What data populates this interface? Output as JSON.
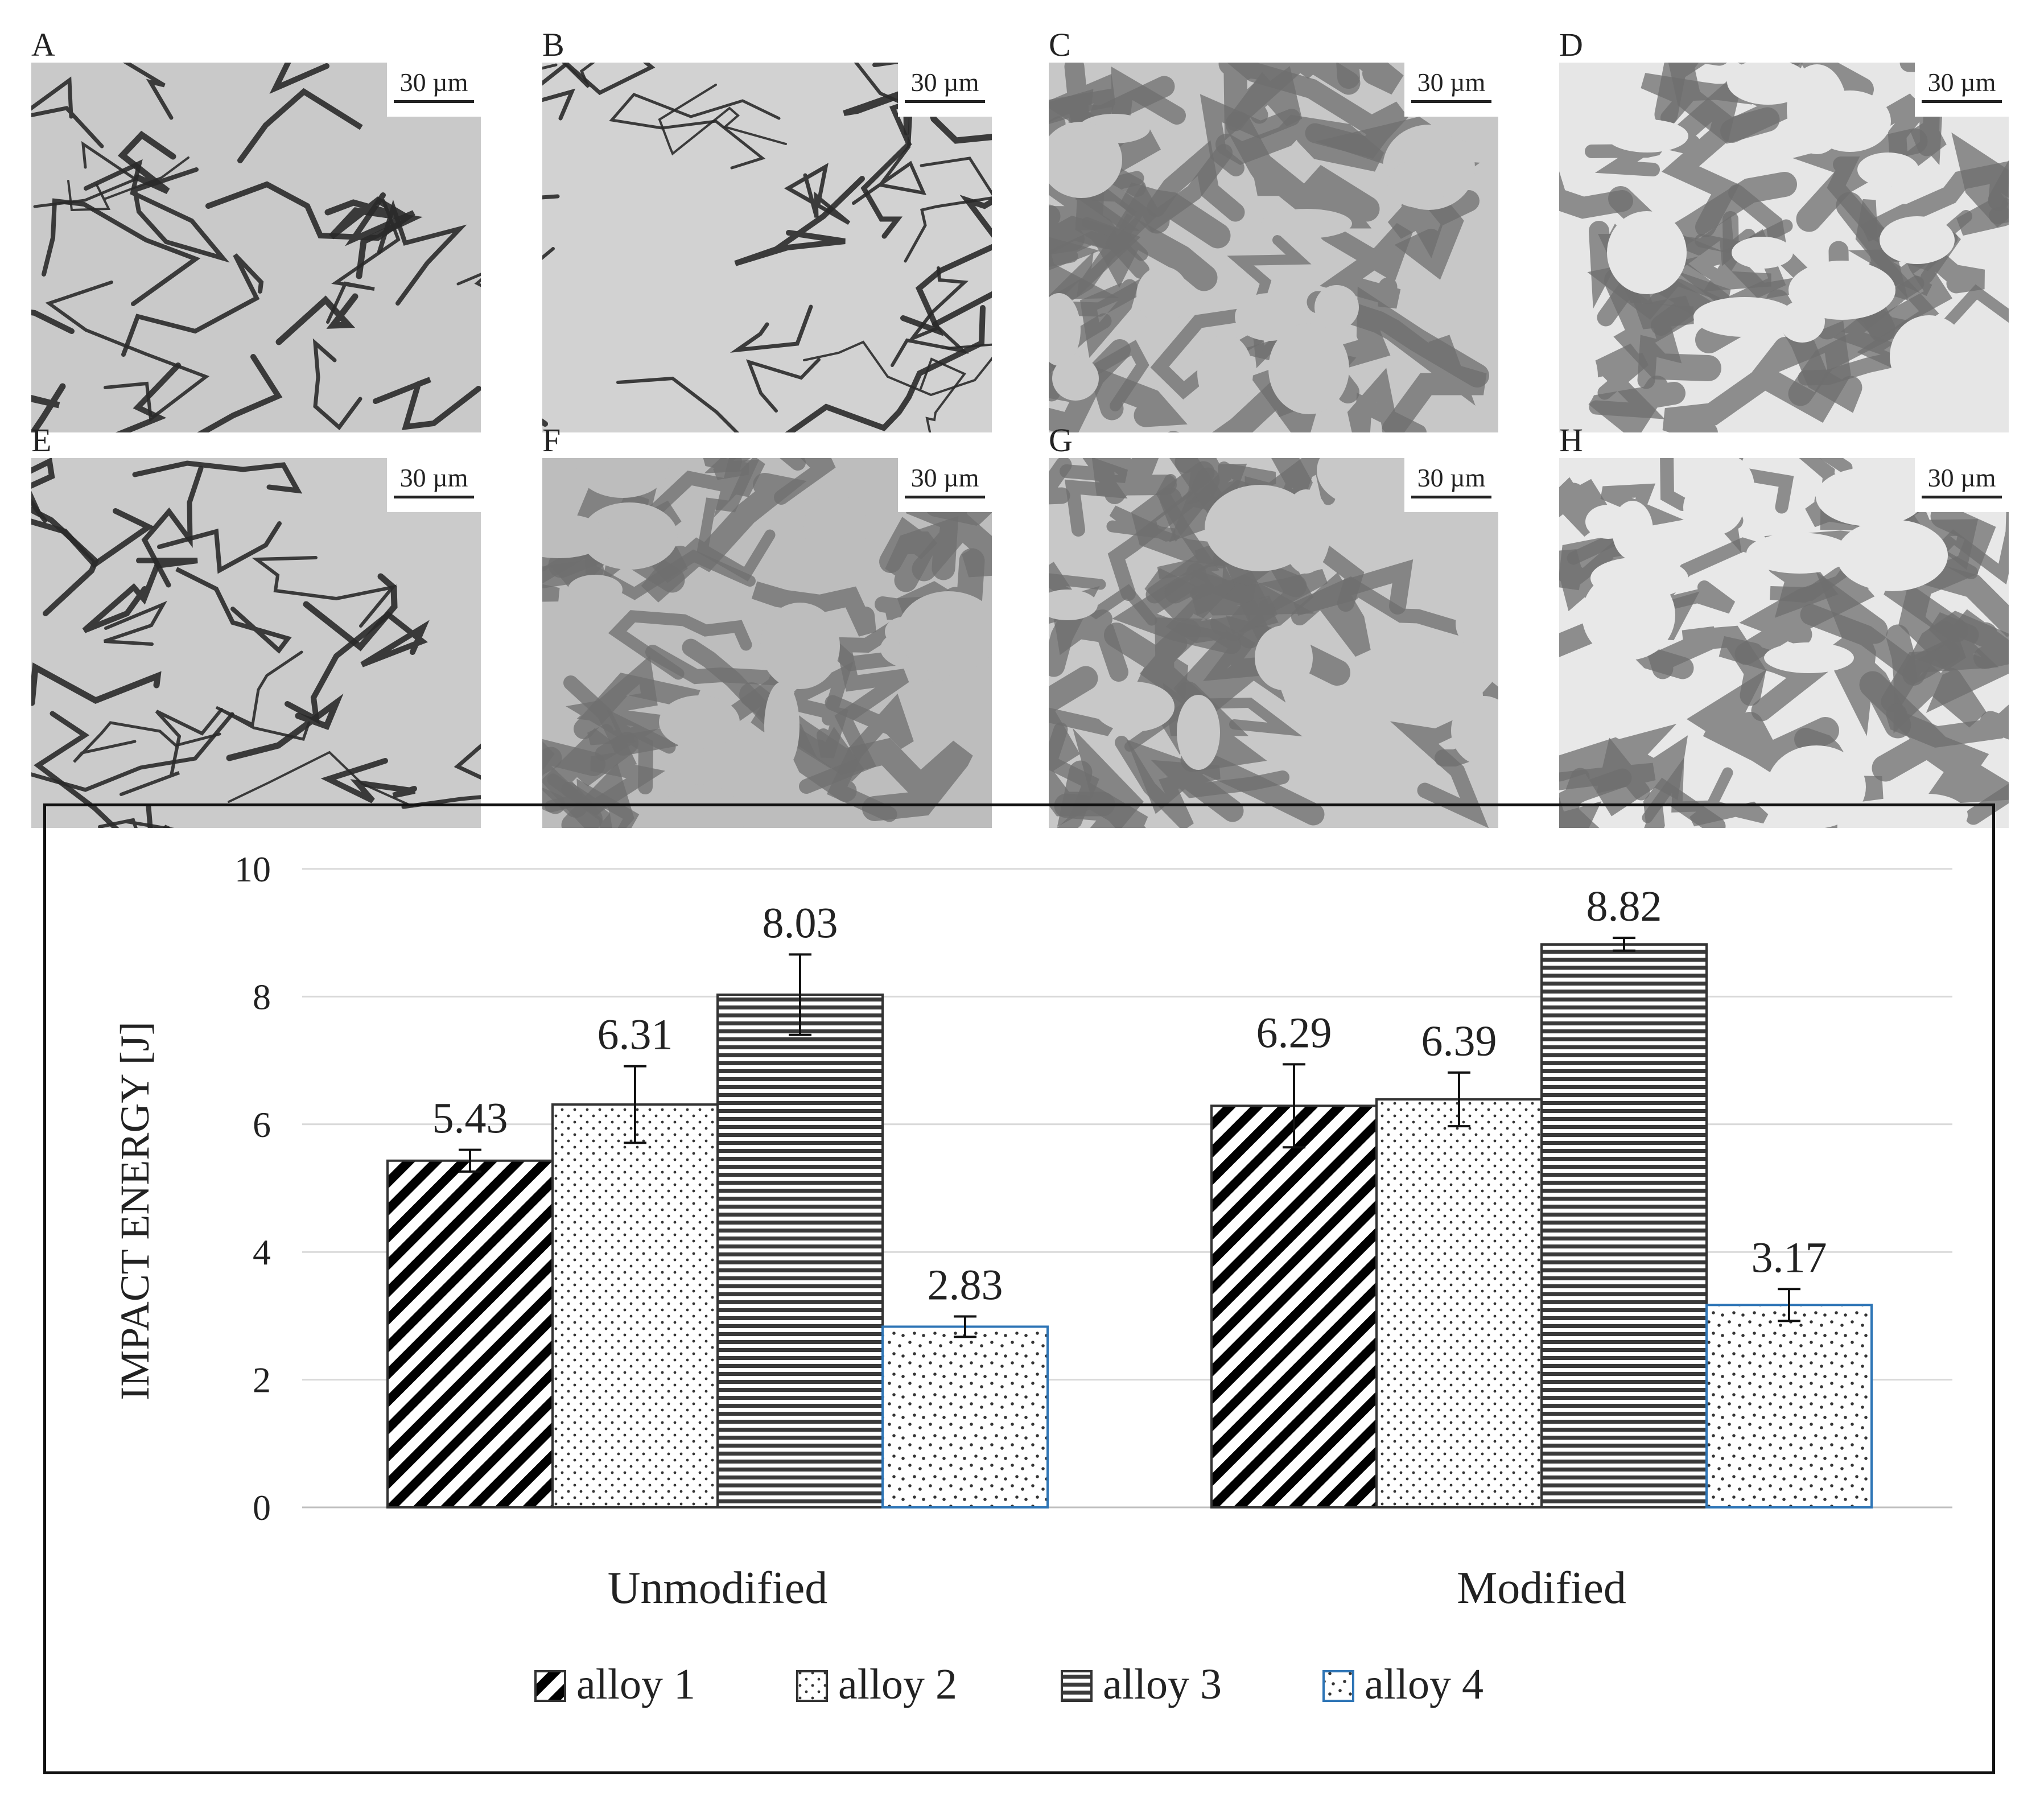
{
  "panels": [
    {
      "letter": "A",
      "scale": "30 µm"
    },
    {
      "letter": "B",
      "scale": "30 µm"
    },
    {
      "letter": "C",
      "scale": "30 µm"
    },
    {
      "letter": "D",
      "scale": "30 µm"
    },
    {
      "letter": "E",
      "scale": "30 µm"
    },
    {
      "letter": "F",
      "scale": "30 µm"
    },
    {
      "letter": "G",
      "scale": "30 µm"
    },
    {
      "letter": "H",
      "scale": "30 µm"
    }
  ],
  "chart_data": {
    "type": "bar",
    "title": "",
    "xlabel": "",
    "ylabel": "IMPACT ENERGY [J]",
    "categories": [
      "Unmodified",
      "Modified"
    ],
    "ylim": [
      0,
      10
    ],
    "yticks": [
      0,
      2,
      4,
      6,
      8,
      10
    ],
    "grid": true,
    "legend_position": "bottom",
    "series": [
      {
        "name": "alloy 1",
        "pattern": "diagonal-hatch",
        "values": [
          5.43,
          6.29
        ],
        "errors": [
          0.17,
          0.65
        ],
        "value_labels": [
          "5.43",
          "6.29"
        ]
      },
      {
        "name": "alloy 2",
        "pattern": "dots",
        "values": [
          6.31,
          6.39
        ],
        "errors": [
          0.6,
          0.42
        ],
        "value_labels": [
          "6.31",
          "6.39"
        ]
      },
      {
        "name": "alloy 3",
        "pattern": "horizontal-lines",
        "values": [
          8.03,
          8.82
        ],
        "errors": [
          0.63,
          0.1
        ],
        "value_labels": [
          "8.03",
          "8.82"
        ]
      },
      {
        "name": "alloy 4",
        "pattern": "sparse-dots",
        "values": [
          2.83,
          3.17
        ],
        "errors": [
          0.16,
          0.25
        ],
        "value_labels": [
          "2.83",
          "3.17"
        ]
      }
    ],
    "colors": {
      "gridline": "#d9d9d9",
      "bar_border": "#333333",
      "alloy4_border": "#2e75b6",
      "text": "#222222"
    }
  }
}
